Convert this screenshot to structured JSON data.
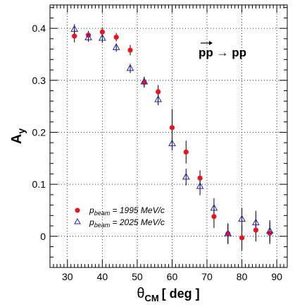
{
  "chart_data": {
    "type": "scatter",
    "xlim": [
      25,
      93
    ],
    "ylim": [
      -0.06,
      0.445
    ],
    "x_ticks": [
      "30",
      "40",
      "50",
      "60",
      "70",
      "80",
      "90"
    ],
    "y_ticks": [
      "0",
      "0.1",
      "0.2",
      "0.3",
      "0.4"
    ],
    "grid": true,
    "legend_position": "bottom-left",
    "ylabel": "A",
    "ylabel_sub": "y",
    "xlabel_main": "θ",
    "xlabel_sub": "CM",
    "xlabel_unit": "[ deg ]",
    "annotation": "pp → pp",
    "series": [
      {
        "name_prefix": "p",
        "name_sub": "beam",
        "name_suffix": " = 1995 MeV/c",
        "marker": "filled-circle",
        "color": "#e8141e",
        "points": [
          {
            "x": 32,
            "y": 0.385,
            "err": 0.012
          },
          {
            "x": 36,
            "y": 0.387,
            "err": 0.008
          },
          {
            "x": 40,
            "y": 0.393,
            "err": 0.009
          },
          {
            "x": 44,
            "y": 0.383,
            "err": 0.008
          },
          {
            "x": 48,
            "y": 0.358,
            "err": 0.01
          },
          {
            "x": 52,
            "y": 0.296,
            "err": 0.01
          },
          {
            "x": 56,
            "y": 0.278,
            "err": 0.013
          },
          {
            "x": 60,
            "y": 0.209,
            "err": 0.036
          },
          {
            "x": 64,
            "y": 0.162,
            "err": 0.022
          },
          {
            "x": 68,
            "y": 0.112,
            "err": 0.015
          },
          {
            "x": 72,
            "y": 0.038,
            "err": 0.022
          },
          {
            "x": 76,
            "y": 0.005,
            "err": 0.02
          },
          {
            "x": 80,
            "y": -0.003,
            "err": 0.024
          },
          {
            "x": 84,
            "y": 0.012,
            "err": 0.022
          },
          {
            "x": 88,
            "y": 0.006,
            "err": 0.021
          }
        ]
      },
      {
        "name_prefix": "p",
        "name_sub": "beam",
        "name_suffix": " = 2025 MeV/c",
        "marker": "open-triangle",
        "color": "#1e1ec8",
        "points": [
          {
            "x": 32,
            "y": 0.398,
            "err": 0.01
          },
          {
            "x": 36,
            "y": 0.382,
            "err": 0.008
          },
          {
            "x": 40,
            "y": 0.381,
            "err": 0.009
          },
          {
            "x": 44,
            "y": 0.363,
            "err": 0.008
          },
          {
            "x": 48,
            "y": 0.323,
            "err": 0.009
          },
          {
            "x": 52,
            "y": 0.297,
            "err": 0.01
          },
          {
            "x": 56,
            "y": 0.263,
            "err": 0.011
          },
          {
            "x": 60,
            "y": 0.178,
            "err": 0.013
          },
          {
            "x": 64,
            "y": 0.114,
            "err": 0.016
          },
          {
            "x": 68,
            "y": 0.096,
            "err": 0.017
          },
          {
            "x": 72,
            "y": 0.054,
            "err": 0.019
          },
          {
            "x": 76,
            "y": 0.005,
            "err": 0.019
          },
          {
            "x": 80,
            "y": 0.033,
            "err": 0.022
          },
          {
            "x": 84,
            "y": 0.026,
            "err": 0.023
          },
          {
            "x": 88,
            "y": 0.01,
            "err": 0.021
          }
        ]
      }
    ]
  }
}
